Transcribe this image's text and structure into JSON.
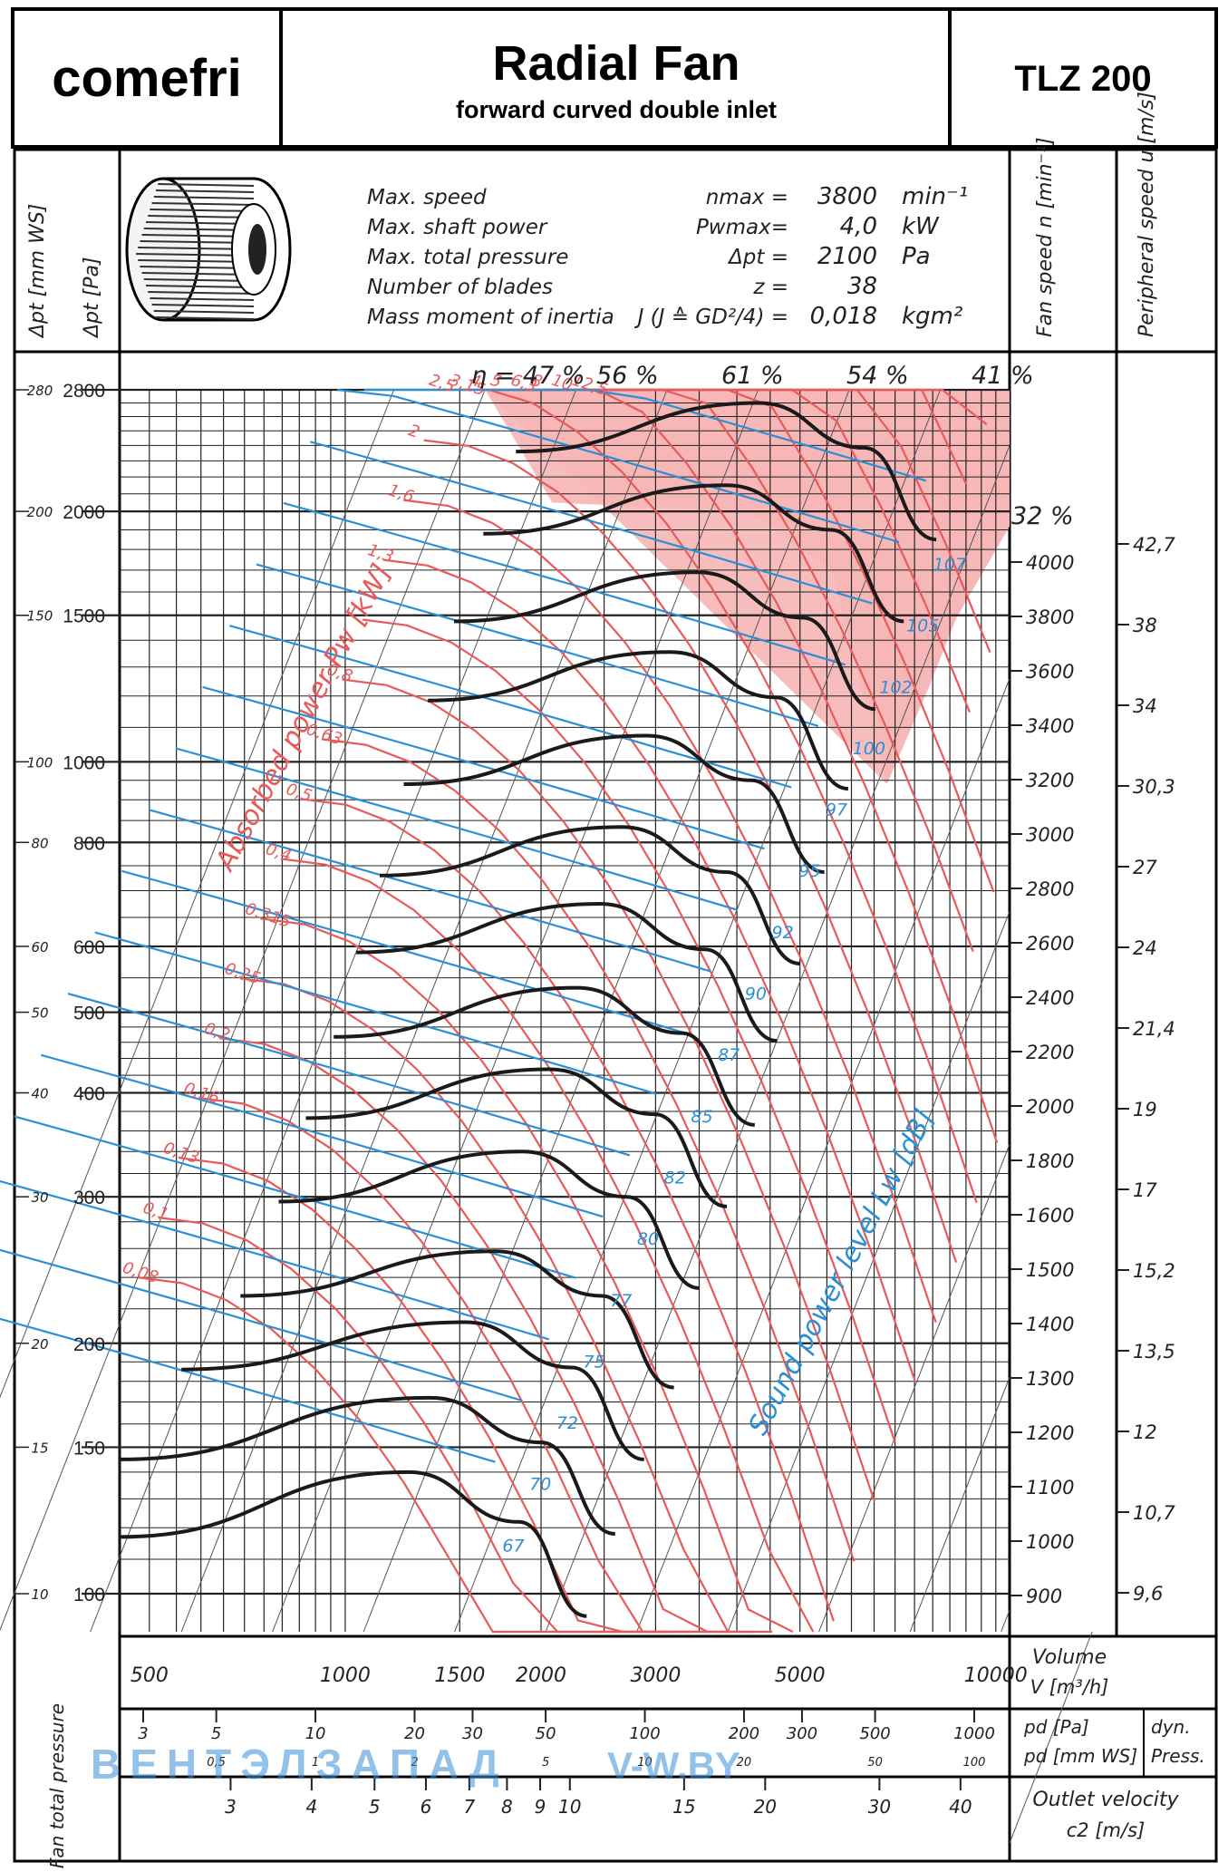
{
  "header": {
    "brand": "comefri",
    "title": "Radial Fan",
    "subtitle": "forward curved double inlet",
    "model": "TLZ 200"
  },
  "specs": [
    {
      "label": "Max. speed",
      "symbol": "nmax =",
      "value": "3800",
      "unit": "min⁻¹"
    },
    {
      "label": "Max. shaft power",
      "symbol": "Pwmax=",
      "value": "4,0",
      "unit": "kW"
    },
    {
      "label": "Max. total pressure",
      "symbol": "Δpt =",
      "value": "2100",
      "unit": "Pa"
    },
    {
      "label": "Number of blades",
      "symbol": "z =",
      "value": "38",
      "unit": ""
    },
    {
      "label": "Mass moment of inertia",
      "symbol": "J (J ≙ GD²/4) =",
      "value": "0,018",
      "unit": "kgm²"
    }
  ],
  "axes": {
    "left_outer": "Δpt [mm WS]",
    "left_inner": "Δpt [Pa]",
    "right_speed": "Fan speed   n [min⁻¹]",
    "right_peripheral": "Peripheral speed   u [m/s]",
    "volume_label": "Volume",
    "volume_unit": "V [m³/h]",
    "pd_pa": "pd [Pa]",
    "pd_mmws": "pd [mm WS]",
    "dyn_press": "dyn.",
    "dyn_press2": "Press.",
    "outlet_velocity": "Outlet velocity",
    "outlet_unit": "c2 [m/s]",
    "fan_total_pressure": "Fan total pressure",
    "absorbed_power": "Absorbed power Pw [kW]",
    "sound_power": "Sound power level Lw [dB]",
    "eta_prefix": "η ="
  },
  "watermark": {
    "left": "ВЕНТЭЛЗАПАД",
    "right": "V-W.BY"
  },
  "chart_data": {
    "type": "line",
    "title": "Radial Fan",
    "xlabel": "V [m³/h]",
    "ylabel": "Δpt [Pa]",
    "xscale": "log",
    "yscale": "log",
    "xlim": [
      450,
      10500
    ],
    "ylim": [
      90,
      2800
    ],
    "x_ticks": [
      {
        "v": 500,
        "l": "500"
      },
      {
        "v": 1000,
        "l": "1000"
      },
      {
        "v": 1500,
        "l": "1500"
      },
      {
        "v": 2000,
        "l": "2000"
      },
      {
        "v": 3000,
        "l": "3000"
      },
      {
        "v": 5000,
        "l": "5000"
      },
      {
        "v": 10000,
        "l": "10000"
      }
    ],
    "y_ticks_pa": [
      {
        "v": 2800,
        "l": "2800"
      },
      {
        "v": 2000,
        "l": "2000"
      },
      {
        "v": 1500,
        "l": "1500"
      },
      {
        "v": 1000,
        "l": "1000"
      },
      {
        "v": 800,
        "l": "800"
      },
      {
        "v": 600,
        "l": "600"
      },
      {
        "v": 500,
        "l": "500"
      },
      {
        "v": 400,
        "l": "400"
      },
      {
        "v": 300,
        "l": "300"
      },
      {
        "v": 200,
        "l": "200"
      },
      {
        "v": 150,
        "l": "150"
      },
      {
        "v": 100,
        "l": "100"
      }
    ],
    "y_ticks_mmws": [
      {
        "v": 2800,
        "l": "280"
      },
      {
        "v": 2000,
        "l": "200"
      },
      {
        "v": 1500,
        "l": "150"
      },
      {
        "v": 1000,
        "l": "100"
      },
      {
        "v": 800,
        "l": "80"
      },
      {
        "v": 600,
        "l": "60"
      },
      {
        "v": 500,
        "l": "50"
      },
      {
        "v": 400,
        "l": "40"
      },
      {
        "v": 300,
        "l": "30"
      },
      {
        "v": 200,
        "l": "20"
      },
      {
        "v": 150,
        "l": "15"
      },
      {
        "v": 100,
        "l": "10"
      }
    ],
    "speed_ticks": [
      {
        "v": 4000,
        "l": "4000"
      },
      {
        "v": 3800,
        "l": "3800"
      },
      {
        "v": 3600,
        "l": "3600"
      },
      {
        "v": 3400,
        "l": "3400"
      },
      {
        "v": 3200,
        "l": "3200"
      },
      {
        "v": 3000,
        "l": "3000"
      },
      {
        "v": 2800,
        "l": "2800"
      },
      {
        "v": 2600,
        "l": "2600"
      },
      {
        "v": 2400,
        "l": "2400"
      },
      {
        "v": 2200,
        "l": "2200"
      },
      {
        "v": 2000,
        "l": "2000"
      },
      {
        "v": 1800,
        "l": "1800"
      },
      {
        "v": 1600,
        "l": "1600"
      },
      {
        "v": 1500,
        "l": "1500"
      },
      {
        "v": 1400,
        "l": "1400"
      },
      {
        "v": 1300,
        "l": "1300"
      },
      {
        "v": 1200,
        "l": "1200"
      },
      {
        "v": 1100,
        "l": "1100"
      },
      {
        "v": 1000,
        "l": "1000"
      },
      {
        "v": 900,
        "l": "900"
      }
    ],
    "peripheral_ticks": [
      {
        "v": 42.7,
        "l": "42,7"
      },
      {
        "v": 38,
        "l": "38"
      },
      {
        "v": 34,
        "l": "34"
      },
      {
        "v": 30.3,
        "l": "30,3"
      },
      {
        "v": 27,
        "l": "27"
      },
      {
        "v": 24,
        "l": "24"
      },
      {
        "v": 21.4,
        "l": "21,4"
      },
      {
        "v": 19,
        "l": "19"
      },
      {
        "v": 17,
        "l": "17"
      },
      {
        "v": 15.2,
        "l": "15,2"
      },
      {
        "v": 13.5,
        "l": "13,5"
      },
      {
        "v": 12,
        "l": "12"
      },
      {
        "v": 10.7,
        "l": "10,7"
      },
      {
        "v": 9.6,
        "l": "9,6"
      }
    ],
    "pd_pa_ticks": [
      {
        "v": 3,
        "l": "3"
      },
      {
        "v": 5,
        "l": "5"
      },
      {
        "v": 10,
        "l": "10"
      },
      {
        "v": 20,
        "l": "20"
      },
      {
        "v": 30,
        "l": "30"
      },
      {
        "v": 50,
        "l": "50"
      },
      {
        "v": 100,
        "l": "100"
      },
      {
        "v": 200,
        "l": "200"
      },
      {
        "v": 300,
        "l": "300"
      },
      {
        "v": 500,
        "l": "500"
      },
      {
        "v": 1000,
        "l": "1000"
      }
    ],
    "pd_mm_ticks": [
      {
        "v": 5,
        "l": "0,5"
      },
      {
        "v": 10,
        "l": "1"
      },
      {
        "v": 20,
        "l": "2"
      },
      {
        "v": 50,
        "l": "5"
      },
      {
        "v": 100,
        "l": "10"
      },
      {
        "v": 200,
        "l": "20"
      },
      {
        "v": 500,
        "l": "50"
      },
      {
        "v": 1000,
        "l": "100"
      }
    ],
    "c2_ticks": [
      {
        "v": 3,
        "l": "3"
      },
      {
        "v": 4,
        "l": "4"
      },
      {
        "v": 5,
        "l": "5"
      },
      {
        "v": 6,
        "l": "6"
      },
      {
        "v": 7,
        "l": "7"
      },
      {
        "v": 8,
        "l": "8"
      },
      {
        "v": 9,
        "l": "9"
      },
      {
        "v": 10,
        "l": "10"
      },
      {
        "v": 15,
        "l": "15"
      },
      {
        "v": 20,
        "l": "20"
      },
      {
        "v": 30,
        "l": "30"
      },
      {
        "v": 40,
        "l": "40"
      }
    ],
    "efficiency_labels": [
      "47 %",
      "56 %",
      "61 %",
      "54 %",
      "41 %",
      "32 %"
    ],
    "power_labels": [
      "0,08",
      "0,1",
      "0,13",
      "0,16",
      "0,2",
      "0,25",
      "0,315",
      "0,4",
      "0,5",
      "0,63",
      "0,8",
      "1",
      "1,3",
      "1,6",
      "2",
      "2,5",
      "3,15",
      "4",
      "5",
      "6,3",
      "8",
      "10",
      "12,5"
    ],
    "sound_labels": [
      "67",
      "70",
      "72",
      "75",
      "77",
      "80",
      "82",
      "85",
      "87",
      "90",
      "92",
      "95",
      "97",
      "100",
      "102",
      "105",
      "107"
    ],
    "series": [
      {
        "name": "900",
        "x": [
          450,
          1250,
          1850,
          2350
        ],
        "y": [
          117,
          140,
          122,
          94
        ]
      },
      {
        "name": "1000",
        "x": [
          450,
          1350,
          2000,
          2600
        ],
        "y": [
          145,
          172,
          152,
          118
        ]
      },
      {
        "name": "1100",
        "x": [
          560,
          1530,
          2230,
          2880
        ],
        "y": [
          186,
          212,
          187,
          145
        ]
      },
      {
        "name": "1200",
        "x": [
          690,
          1700,
          2480,
          3200
        ],
        "y": [
          228,
          258,
          228,
          177
        ]
      },
      {
        "name": "1300",
        "x": [
          790,
          1870,
          2710,
          3500
        ],
        "y": [
          296,
          340,
          300,
          233
        ]
      },
      {
        "name": "1400",
        "x": [
          870,
          2060,
          2990,
          3860
        ],
        "y": [
          373,
          427,
          377,
          292
        ]
      },
      {
        "name": "1500",
        "x": [
          960,
          2270,
          3290,
          4260
        ],
        "y": [
          467,
          535,
          472,
          366
        ]
      },
      {
        "name": "1600",
        "x": [
          1040,
          2460,
          3570,
          4610
        ],
        "y": [
          590,
          675,
          595,
          462
        ]
      },
      {
        "name": "1700",
        "x": [
          1130,
          2660,
          3860,
          5000
        ],
        "y": [
          730,
          835,
          737,
          572
        ]
      },
      {
        "name": "1800",
        "x": [
          1230,
          2900,
          4210,
          5450
        ],
        "y": [
          940,
          1075,
          950,
          737
        ]
      },
      {
        "name": "1900",
        "x": [
          1340,
          3160,
          4590,
          5930
        ],
        "y": [
          1185,
          1355,
          1195,
          928
        ]
      },
      {
        "name": "2000",
        "x": [
          1470,
          3480,
          5050,
          6530
        ],
        "y": [
          1475,
          1690,
          1490,
          1157
        ]
      },
      {
        "name": "2100",
        "x": [
          1630,
          3850,
          5580,
          7220
        ],
        "y": [
          1880,
          2150,
          1900,
          1475
        ]
      },
      {
        "name": "2200",
        "x": [
          1830,
          4320,
          6270,
          8100
        ],
        "y": [
          2360,
          2700,
          2385,
          1850
        ]
      }
    ]
  }
}
